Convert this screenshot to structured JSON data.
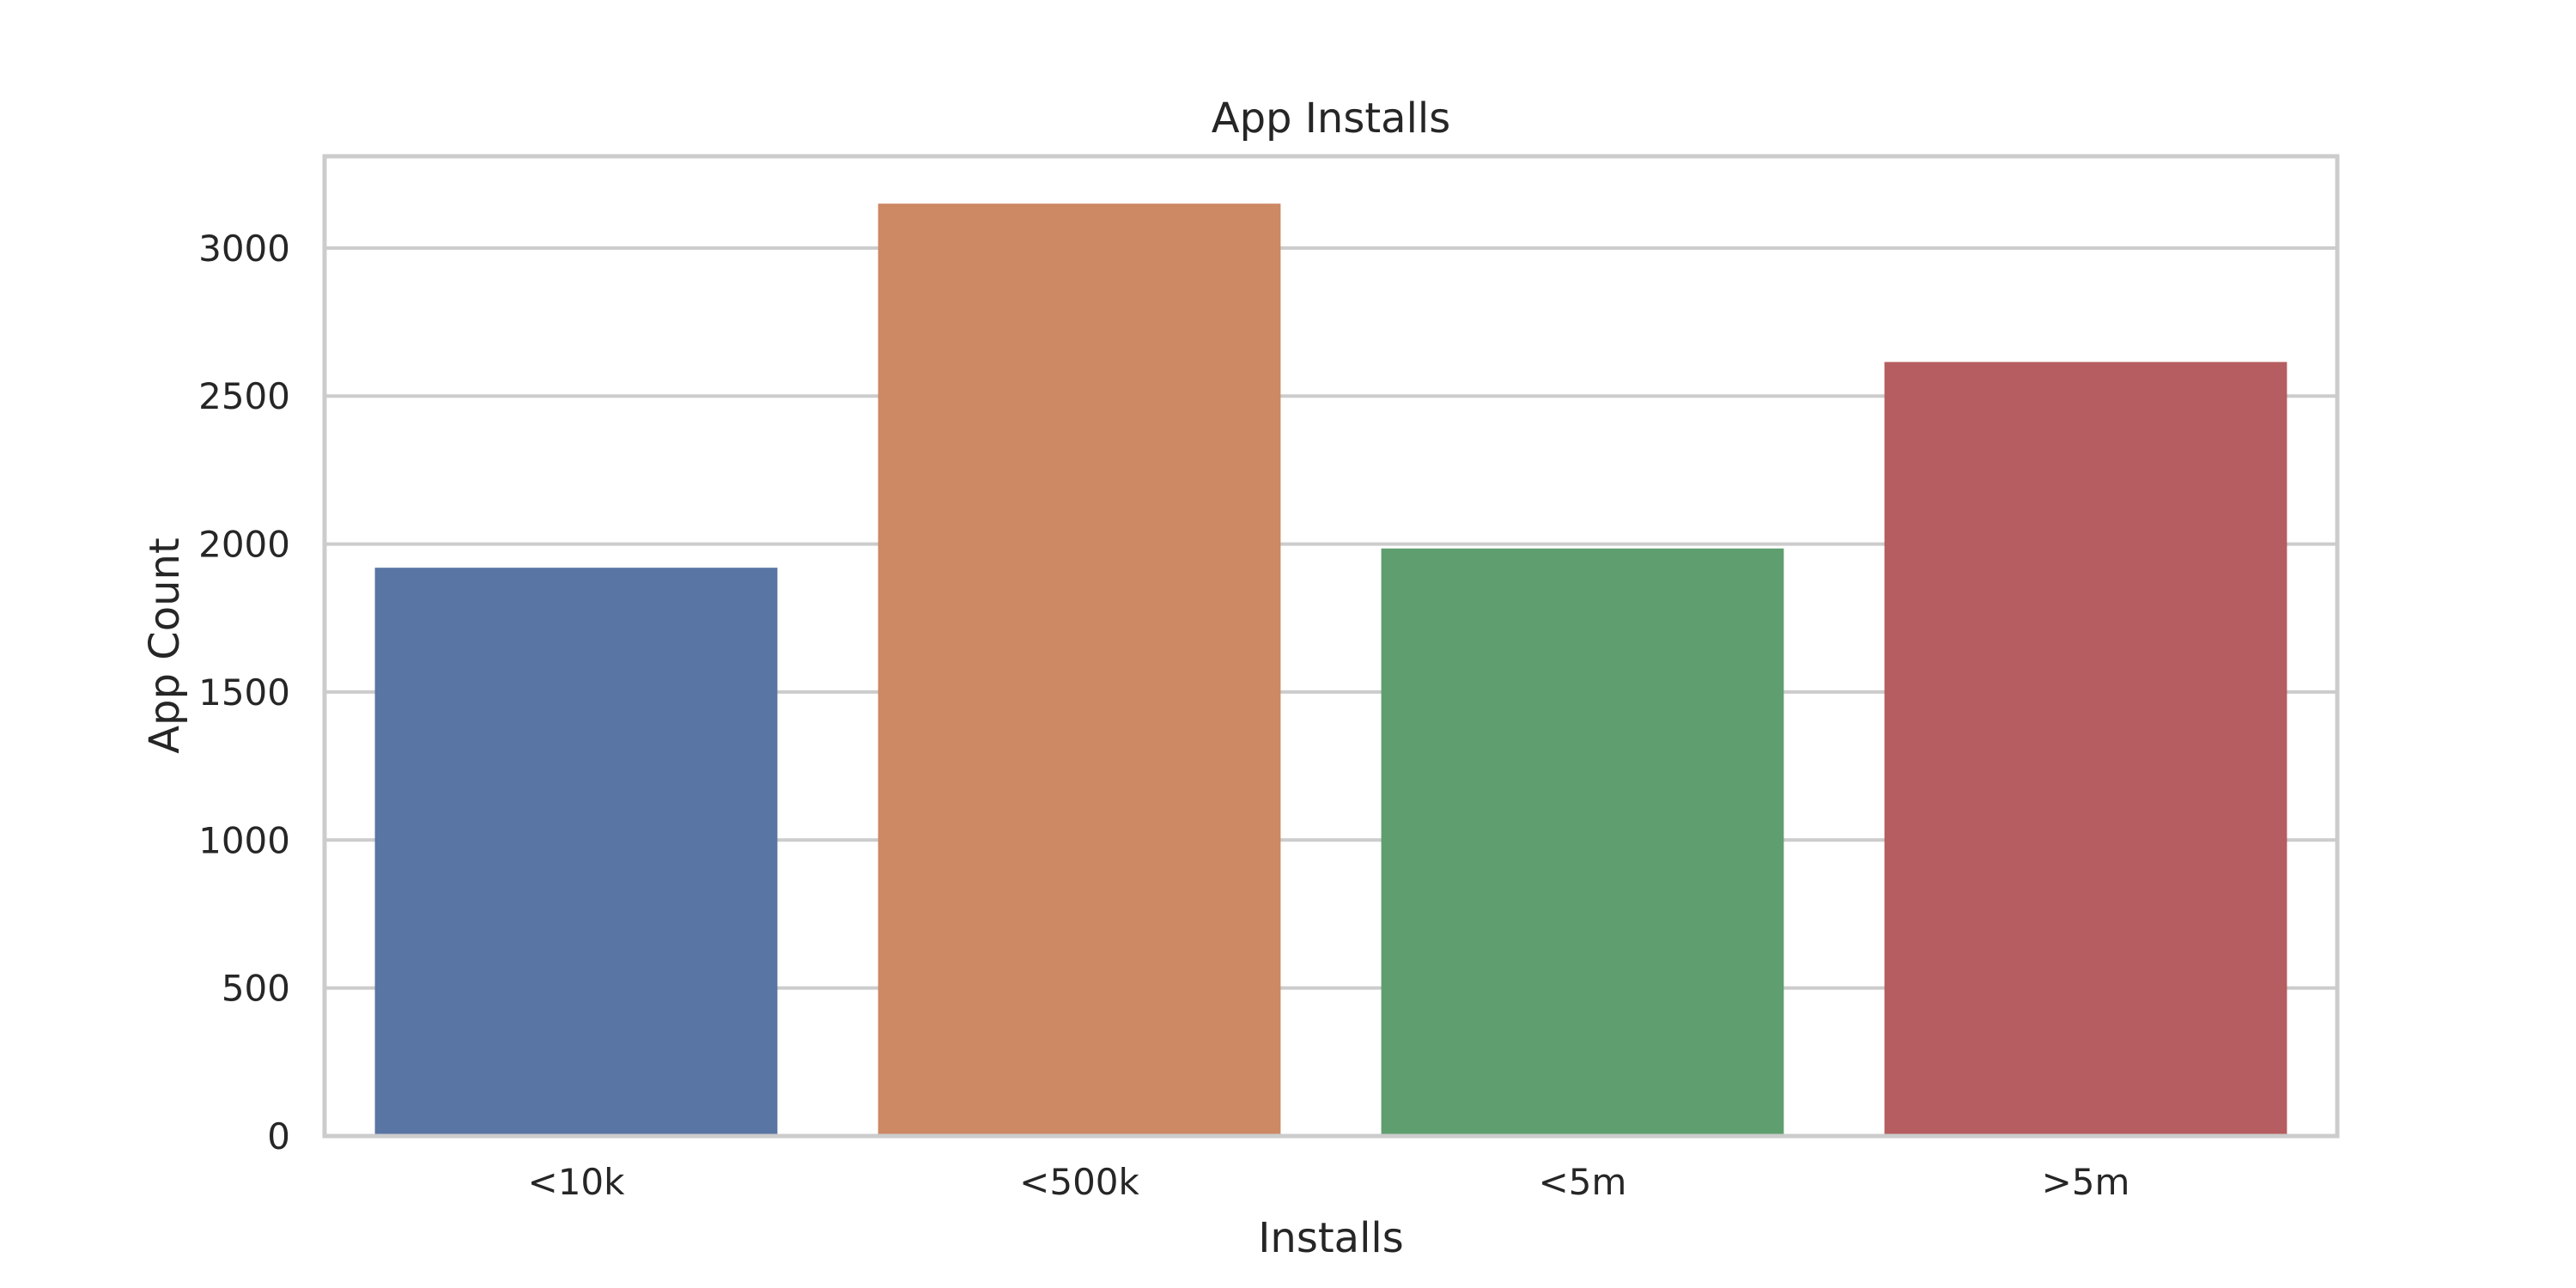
{
  "chart_data": {
    "type": "bar",
    "title": "App Installs",
    "xlabel": "Installs",
    "ylabel": "App Count",
    "categories": [
      "<10k",
      "<500k",
      "<5m",
      ">5m"
    ],
    "values": [
      1920,
      3150,
      1985,
      2615
    ],
    "colors": [
      "#5975a4",
      "#cc8963",
      "#5f9e6e",
      "#b55d60"
    ],
    "ylim": [
      0,
      3310
    ],
    "yticks": [
      0,
      500,
      1000,
      1500,
      2000,
      2500,
      3000
    ],
    "ytick_labels": [
      "0",
      "500",
      "1000",
      "1500",
      "2000",
      "2500",
      "3000"
    ],
    "grid": true,
    "legend": false
  }
}
